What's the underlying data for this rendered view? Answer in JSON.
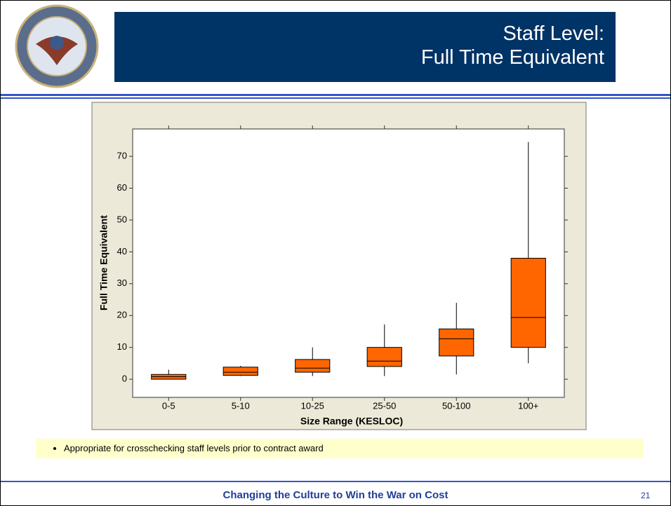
{
  "slide": {
    "title": [
      "Staff Level:",
      "Full Time Equivalent"
    ],
    "bullets": [
      "Appropriate for crosschecking staff levels prior to contract award"
    ],
    "footer": "Changing the Culture to Win the War on Cost",
    "page": "21"
  },
  "chart_data": {
    "type": "box",
    "x_label": "Size Range (KESLOC)",
    "y_label": "Full Time Equivalent",
    "categories": [
      "0-5",
      "5-10",
      "10-25",
      "25-50",
      "50-100",
      "100+"
    ],
    "min": [
      0,
      1,
      1,
      1,
      1.5,
      5
    ],
    "q1": [
      0,
      1.2,
      2.2,
      4,
      7.3,
      10
    ],
    "median": [
      0.8,
      2.2,
      3.5,
      5.7,
      12.7,
      19.4
    ],
    "q3": [
      1.5,
      3.8,
      6.2,
      10,
      15.8,
      38
    ],
    "max": [
      3,
      4.2,
      10,
      17.2,
      24,
      74.5
    ],
    "color": "#ff6600",
    "ylim": [
      -5.7,
      78.6
    ],
    "yticks": [
      0,
      10,
      20,
      30,
      40,
      50,
      60,
      70
    ],
    "grid": false
  }
}
